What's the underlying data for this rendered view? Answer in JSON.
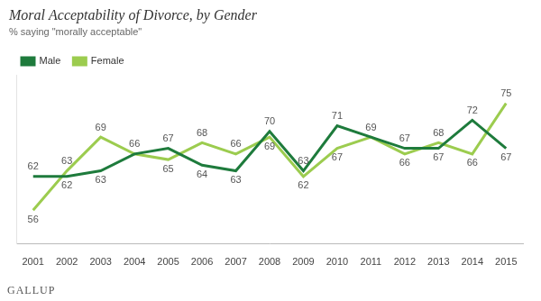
{
  "chart_data": {
    "type": "line",
    "title": "Moral Acceptability of Divorce, by Gender",
    "subtitle": "% saying \"morally acceptable\"",
    "source": "GALLUP",
    "categories": [
      "2001",
      "2002",
      "2003",
      "2004",
      "2005",
      "2006",
      "2007",
      "2008",
      "2009",
      "2010",
      "2011",
      "2012",
      "2013",
      "2014",
      "2015"
    ],
    "series": [
      {
        "name": "Male",
        "color": "#1e7b3c",
        "values": [
          62,
          62,
          63,
          66,
          67,
          64,
          63,
          70,
          63,
          71,
          69,
          67,
          67,
          72,
          67
        ]
      },
      {
        "name": "Female",
        "color": "#9ccc4f",
        "values": [
          56,
          63,
          69,
          66,
          65,
          68,
          66,
          69,
          62,
          67,
          69,
          66,
          68,
          66,
          75
        ]
      }
    ],
    "ylim": [
      50,
      80
    ],
    "grid": false,
    "legend": "top-left",
    "data_labels": true,
    "tick_labels": "x"
  }
}
